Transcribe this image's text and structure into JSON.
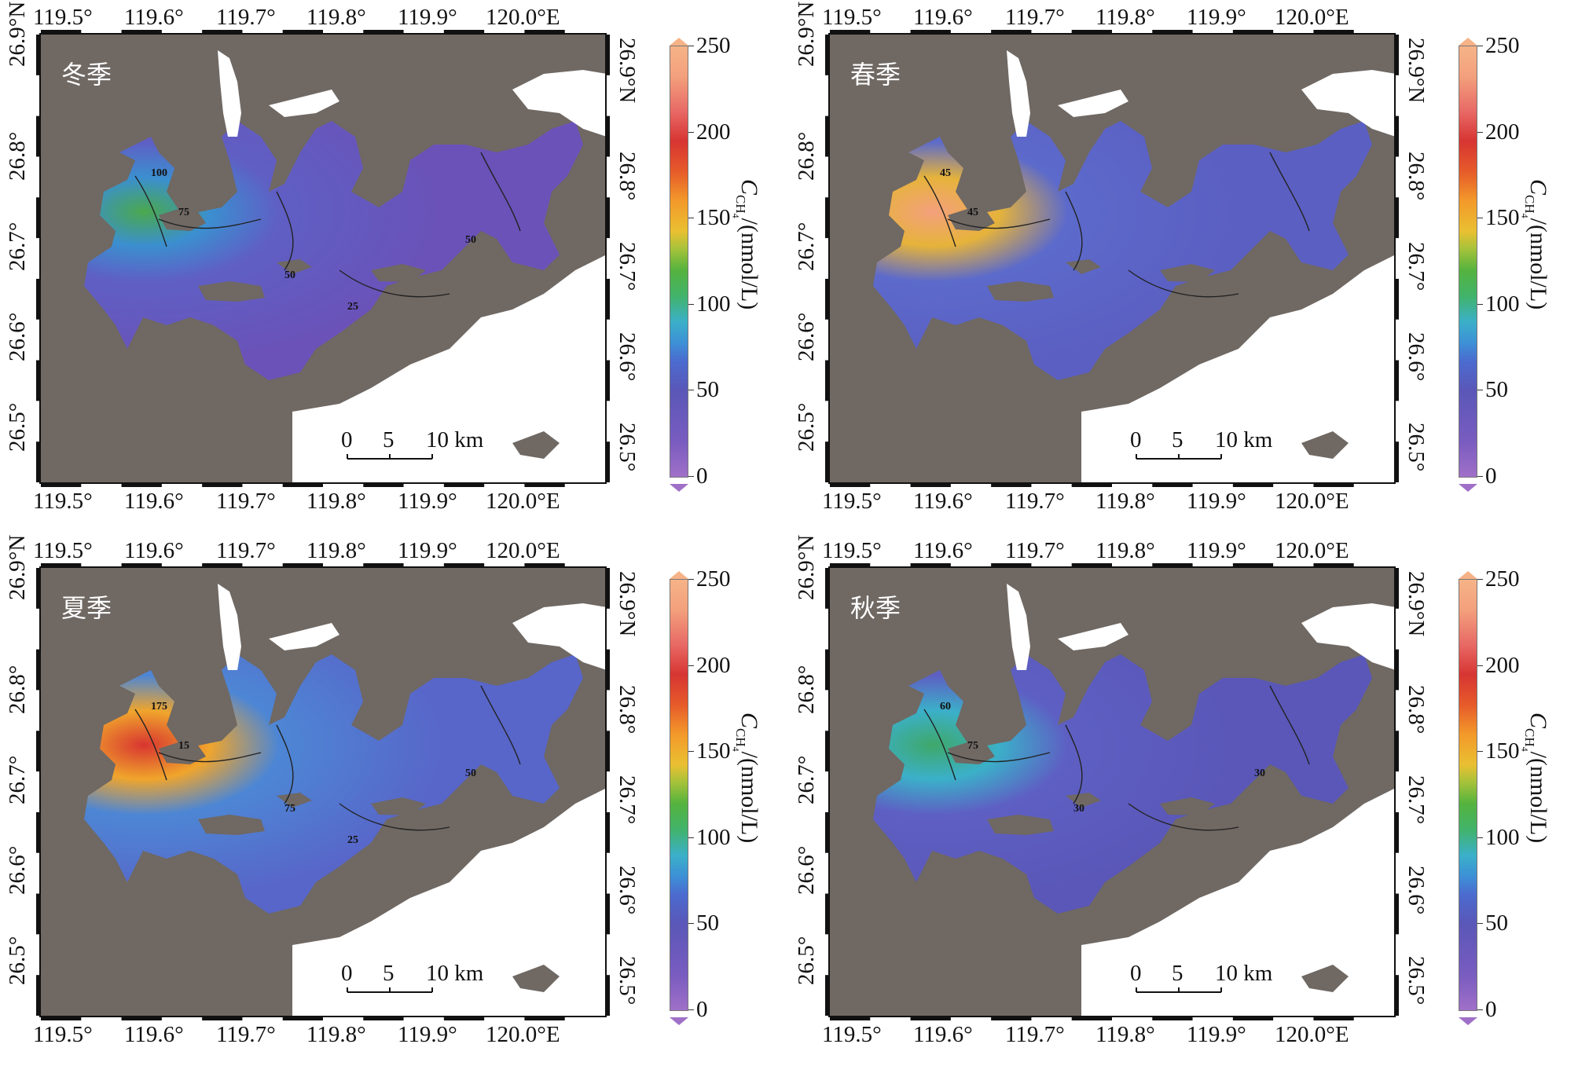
{
  "top_lon_labels": [
    "119.5°",
    "119.6°",
    "119.7°",
    "119.8°",
    "119.9°",
    "120.0°E"
  ],
  "bottom_lon_labels": [
    "119.5°",
    "119.6°",
    "119.7°",
    "119.8°",
    "119.9°",
    "120.0°E"
  ],
  "left_lat_labels": [
    "26.9°N",
    "26.8°",
    "26.7°",
    "26.6°",
    "26.5°"
  ],
  "right_lat_labels": [
    "26.9°N",
    "26.8°",
    "26.7°",
    "26.6°",
    "26.5°"
  ],
  "colorbar": {
    "ticks": [
      "250",
      "200",
      "150",
      "100",
      "50",
      "0"
    ],
    "title": "C",
    "title_sub": "CH",
    "title_sub2": "4",
    "title_units": "/(nmol/L)"
  },
  "scale_bar": {
    "zero": "0",
    "five": "5",
    "ten": "10 km"
  },
  "colors": {
    "land": "#6f6863",
    "sea": "#ffffff",
    "frame": "#111111"
  },
  "panels": [
    {
      "season": "冬季",
      "contour_labels": [
        "100",
        "75",
        "50",
        "50",
        "25"
      ]
    },
    {
      "season": "春季",
      "contour_labels": [
        "45",
        "45"
      ]
    },
    {
      "season": "夏季",
      "contour_labels": [
        "175",
        "15",
        "75",
        "50",
        "25"
      ]
    },
    {
      "season": "秋季",
      "contour_labels": [
        "60",
        "75",
        "30",
        "30"
      ]
    }
  ]
}
